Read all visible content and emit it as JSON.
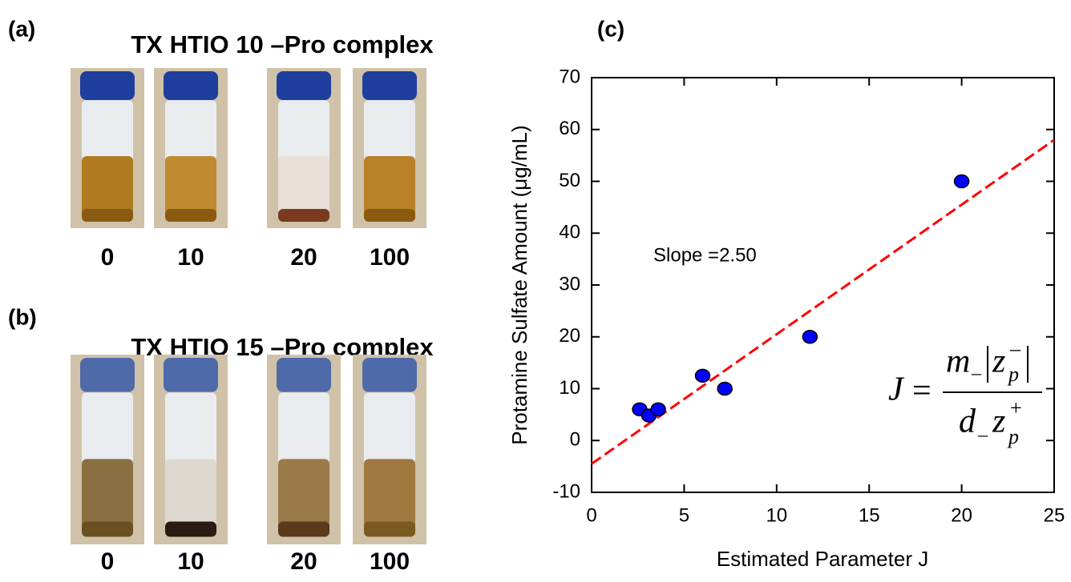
{
  "panels": [
    {
      "label": "(a)",
      "title": "TX HTIO 10 –Pro complex",
      "vials": [
        "0",
        "10",
        "20",
        "100"
      ]
    },
    {
      "label": "(b)",
      "title": "TX HTIO 15 –Pro complex",
      "vials": [
        "0",
        "10",
        "20",
        "100"
      ]
    }
  ],
  "chart_data": {
    "type": "scatter",
    "title": "(c)",
    "x_label": "Estimated Parameter J",
    "y_label": "Protamine Sulfate Amount (μg/mL)",
    "x": [
      2.6,
      3.1,
      3.6,
      6.0,
      7.2,
      11.8,
      20.0
    ],
    "values": [
      6,
      4.8,
      6,
      12.5,
      10,
      20,
      50
    ],
    "color": "#0000ff",
    "fit_line": {
      "color": "#ff0000",
      "x": [
        0,
        25
      ],
      "values": [
        -4.5,
        58
      ]
    },
    "annotation": "Slope =2.50",
    "formula": {
      "lhs": "J",
      "eq": "=",
      "m": "m",
      "m_sub": "–",
      "z": "z",
      "z_sub": "p",
      "z_sup": "–",
      "d": "d",
      "d_sub": "–",
      "z2": "z",
      "z2_sub": "p",
      "z2_sup": "+"
    },
    "xlim": [
      0,
      25
    ],
    "xticks": [
      0,
      5,
      10,
      15,
      20,
      25
    ],
    "ylim": [
      -10,
      70
    ],
    "yticks": [
      -10,
      0,
      10,
      20,
      30,
      40,
      50,
      60,
      70
    ]
  }
}
